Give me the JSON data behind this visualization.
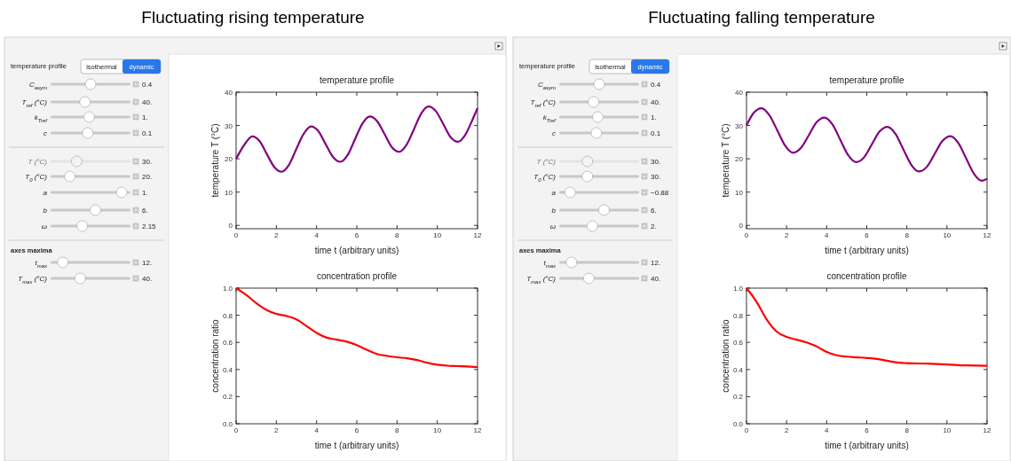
{
  "chart_data": [
    {
      "type": "other",
      "title": "Fluctuating rising temperature",
      "annotations": [
        "temperature profile",
        "isothermal",
        "dynamic",
        "C$_{asym}$",
        "0.4",
        "T$_{ref}$ (°C)",
        "40.",
        "k$_{Tref}$",
        "1.",
        "c",
        "0.1",
        "T (°C)",
        "30.",
        "T$_{0}$ (°C)",
        "20.",
        "a",
        "1.",
        "b",
        "6.",
        "ω",
        "2.15",
        "axes maxima",
        "t$_{max}$",
        "12.",
        "T$_{max}$ (°C)",
        "40."
      ]
    },
    {
      "type": "line",
      "title": "temperature profile",
      "xlabel": "time t (arbitrary units)",
      "ylabel": "temperature T (°C)",
      "xlim": [
        0,
        12
      ],
      "ylim": [
        -1,
        40
      ],
      "xticks": [
        0,
        2,
        4,
        6,
        8,
        10,
        12
      ],
      "yticks": [
        0,
        10,
        20,
        30,
        40
      ],
      "grid": false,
      "series": [
        {
          "color": "#800080",
          "x": [
            0,
            0.44,
            0.8,
            1.17,
            1.53,
            1.9,
            2.26,
            2.63,
            2.99,
            3.36,
            3.72,
            4.09,
            4.45,
            4.82,
            5.18,
            5.55,
            5.91,
            6.28,
            6.65,
            7.01,
            7.38,
            7.74,
            8.11,
            8.47,
            8.84,
            9.2,
            9.57,
            9.93,
            10.3,
            10.66,
            11.03,
            11.39,
            11.76,
            12
          ],
          "values": [
            20,
            24.5,
            26.7,
            25.3,
            21.4,
            17.5,
            16.1,
            18.2,
            22.9,
            27.5,
            29.7,
            28.3,
            24.4,
            20.5,
            19.1,
            21.2,
            25.9,
            30.6,
            32.7,
            31.3,
            27.4,
            23.5,
            22.1,
            24.2,
            28.9,
            33.6,
            35.7,
            34.3,
            30.4,
            26.5,
            25.1,
            27.2,
            31.9,
            35.2
          ]
        }
      ]
    },
    {
      "type": "line",
      "title": "concentration profile",
      "xlabel": "time t (arbitrary units)",
      "ylabel": "concentration ratio",
      "xlim": [
        0,
        12
      ],
      "ylim": [
        0,
        1
      ],
      "xticks": [
        0,
        2,
        4,
        6,
        8,
        10,
        12
      ],
      "yticks": [
        {
          "value": 0,
          "label": "0.0"
        },
        {
          "value": 0.2,
          "label": "0.2"
        },
        {
          "value": 0.4,
          "label": "0.4"
        },
        {
          "value": 0.6,
          "label": "0.6"
        },
        {
          "value": 0.8,
          "label": "0.8"
        },
        {
          "value": 1,
          "label": "1.0"
        }
      ],
      "grid": false,
      "series": [
        {
          "color": "#ff0000",
          "x": [
            0,
            0.5,
            1,
            1.5,
            2,
            2.5,
            3,
            3.5,
            4,
            4.5,
            5,
            5.5,
            6,
            6.5,
            7,
            7.5,
            8,
            8.5,
            9,
            9.5,
            10,
            10.5,
            11,
            11.5,
            12
          ],
          "values": [
            1,
            0.95,
            0.89,
            0.84,
            0.81,
            0.795,
            0.77,
            0.72,
            0.67,
            0.635,
            0.62,
            0.605,
            0.58,
            0.545,
            0.515,
            0.5,
            0.49,
            0.483,
            0.47,
            0.45,
            0.435,
            0.428,
            0.425,
            0.422,
            0.418
          ]
        }
      ]
    },
    {
      "type": "other",
      "title": "Fluctuating falling temperature",
      "annotations": [
        "temperature profile",
        "isothermal",
        "dynamic",
        "C$_{asym}$",
        "0.4",
        "T$_{ref}$ (°C)",
        "40.",
        "k$_{Tref}$",
        "1.",
        "c",
        "0.1",
        "T (°C)",
        "30.",
        "T$_{0}$ (°C)",
        "30.",
        "a",
        "−0.88",
        "b",
        "6.",
        "ω",
        "2.",
        "axes maxima",
        "t$_{max}$",
        "12.",
        "T$_{max}$ (°C)",
        "40."
      ]
    },
    {
      "type": "line",
      "title": "temperature profile",
      "xlabel": "time t (arbitrary units)",
      "ylabel": "temperature T (°C)",
      "xlim": [
        0,
        12
      ],
      "ylim": [
        -1,
        40
      ],
      "xticks": [
        0,
        2,
        4,
        6,
        8,
        10,
        12
      ],
      "yticks": [
        0,
        10,
        20,
        30,
        40
      ],
      "grid": false,
      "series": [
        {
          "color": "#800080",
          "x": [
            0,
            0.36,
            0.75,
            1.14,
            1.54,
            1.93,
            2.32,
            2.71,
            3.11,
            3.5,
            3.89,
            4.29,
            4.68,
            5.07,
            5.46,
            5.86,
            6.25,
            6.64,
            7.03,
            7.43,
            7.82,
            8.21,
            8.6,
            9,
            9.39,
            9.78,
            10.18,
            10.57,
            10.96,
            11.35,
            11.75,
            12
          ],
          "values": [
            30,
            33.8,
            35.2,
            33.1,
            28.5,
            23.9,
            21.8,
            23.2,
            27.1,
            31,
            32.4,
            30.3,
            25.7,
            21.1,
            19,
            20.4,
            24.3,
            28.2,
            29.6,
            27.5,
            22.9,
            18.3,
            16.2,
            17.6,
            21.5,
            25.4,
            26.8,
            24.7,
            20.1,
            15.5,
            13.4,
            14
          ]
        }
      ]
    },
    {
      "type": "line",
      "title": "concentration profile",
      "xlabel": "time t (arbitrary units)",
      "ylabel": "concentration ratio",
      "xlim": [
        0,
        12
      ],
      "ylim": [
        0,
        1
      ],
      "xticks": [
        0,
        2,
        4,
        6,
        8,
        10,
        12
      ],
      "yticks": [
        {
          "value": 0,
          "label": "0.0"
        },
        {
          "value": 0.2,
          "label": "0.2"
        },
        {
          "value": 0.4,
          "label": "0.4"
        },
        {
          "value": 0.6,
          "label": "0.6"
        },
        {
          "value": 0.8,
          "label": "0.8"
        },
        {
          "value": 1,
          "label": "1.0"
        }
      ],
      "grid": false,
      "series": [
        {
          "color": "#ff0000",
          "x": [
            0,
            0.5,
            1,
            1.5,
            2,
            2.5,
            3,
            3.5,
            4,
            4.5,
            5,
            5.5,
            6,
            6.5,
            7,
            7.5,
            8,
            9,
            10,
            11,
            12
          ],
          "values": [
            1,
            0.9,
            0.77,
            0.68,
            0.64,
            0.62,
            0.6,
            0.57,
            0.53,
            0.505,
            0.495,
            0.49,
            0.485,
            0.478,
            0.465,
            0.452,
            0.447,
            0.443,
            0.437,
            0.43,
            0.427
          ]
        }
      ]
    }
  ]
}
